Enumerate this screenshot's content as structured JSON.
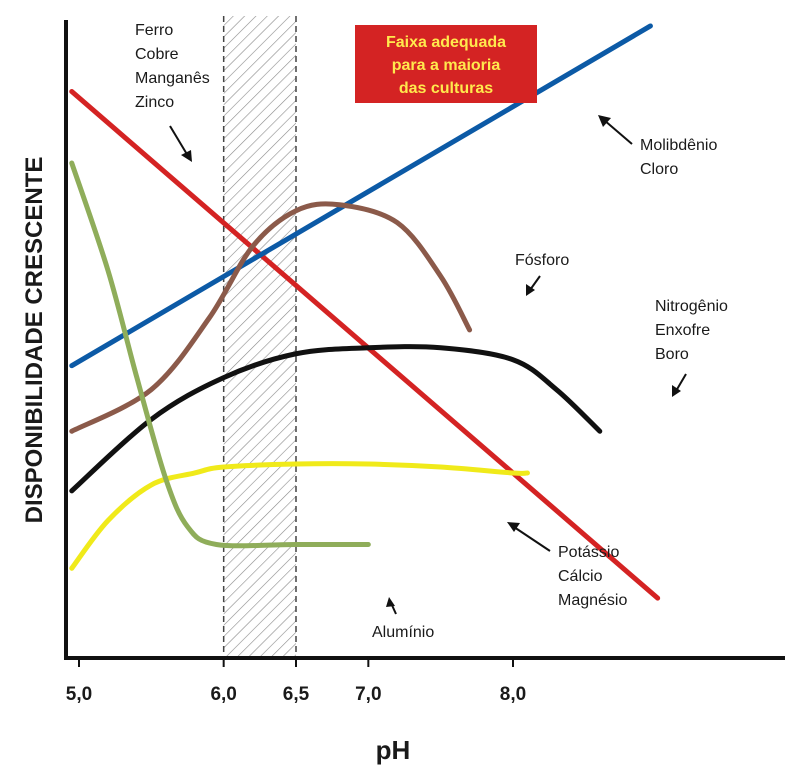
{
  "chart_data": {
    "type": "line",
    "xlabel": "pH",
    "ylabel": "DISPONIBILIDADE CRESCENTE",
    "xlim": [
      4.9,
      9.0
    ],
    "ylim": [
      0,
      100
    ],
    "x_ticks": [
      {
        "value": 5.0,
        "label": "5,0"
      },
      {
        "value": 6.0,
        "label": "6,0"
      },
      {
        "value": 6.5,
        "label": "6,5"
      },
      {
        "value": 7.0,
        "label": "7,0"
      },
      {
        "value": 8.0,
        "label": "8,0"
      }
    ],
    "highlight_band": {
      "from": 6.0,
      "to": 6.5,
      "lines": [
        "Faixa adequada",
        "para a maioria",
        "das culturas"
      ],
      "badge_color": "#d42323",
      "badge_text_color": "#ffe94d"
    },
    "annotations": [
      {
        "lines": [
          "Ferro",
          "Cobre",
          "Manganês",
          "Zinco"
        ]
      },
      {
        "lines": [
          "Molibdênio",
          "Cloro"
        ]
      },
      {
        "lines": [
          "Fósforo"
        ]
      },
      {
        "lines": [
          "Nitrogênio",
          "Enxofre",
          "Boro"
        ]
      },
      {
        "lines": [
          "Potássio",
          "Cálcio",
          "Magnésio"
        ]
      },
      {
        "lines": [
          "Alumínio"
        ]
      }
    ],
    "series": [
      {
        "color": "#d42323",
        "points": [
          [
            4.95,
            88
          ],
          [
            9.0,
            3
          ]
        ]
      },
      {
        "color": "#0c5aa6",
        "points": [
          [
            4.95,
            42
          ],
          [
            8.95,
            99
          ]
        ]
      },
      {
        "color": "#8b5a4a",
        "points": [
          [
            4.95,
            31
          ],
          [
            5.5,
            38
          ],
          [
            5.9,
            50
          ],
          [
            6.2,
            62
          ],
          [
            6.5,
            68
          ],
          [
            6.8,
            69
          ],
          [
            7.2,
            66
          ],
          [
            7.5,
            57
          ],
          [
            7.7,
            48
          ]
        ]
      },
      {
        "color": "#111111",
        "points": [
          [
            4.95,
            21
          ],
          [
            5.5,
            33
          ],
          [
            6.0,
            40
          ],
          [
            6.5,
            44
          ],
          [
            7.0,
            45
          ],
          [
            7.5,
            45
          ],
          [
            8.0,
            43
          ],
          [
            8.3,
            38
          ],
          [
            8.6,
            31
          ]
        ]
      },
      {
        "color": "#f0ea1a",
        "points": [
          [
            4.95,
            8
          ],
          [
            5.2,
            16
          ],
          [
            5.5,
            22
          ],
          [
            5.8,
            24
          ],
          [
            6.0,
            25
          ],
          [
            6.5,
            25.5
          ],
          [
            7.0,
            25.5
          ],
          [
            7.5,
            25
          ],
          [
            8.0,
            24
          ],
          [
            8.1,
            24
          ]
        ]
      },
      {
        "color": "#8fad5a",
        "points": [
          [
            4.95,
            76
          ],
          [
            5.2,
            58
          ],
          [
            5.4,
            40
          ],
          [
            5.6,
            23
          ],
          [
            5.75,
            15
          ],
          [
            5.95,
            12
          ],
          [
            6.5,
            12
          ],
          [
            7.0,
            12
          ]
        ]
      }
    ]
  }
}
